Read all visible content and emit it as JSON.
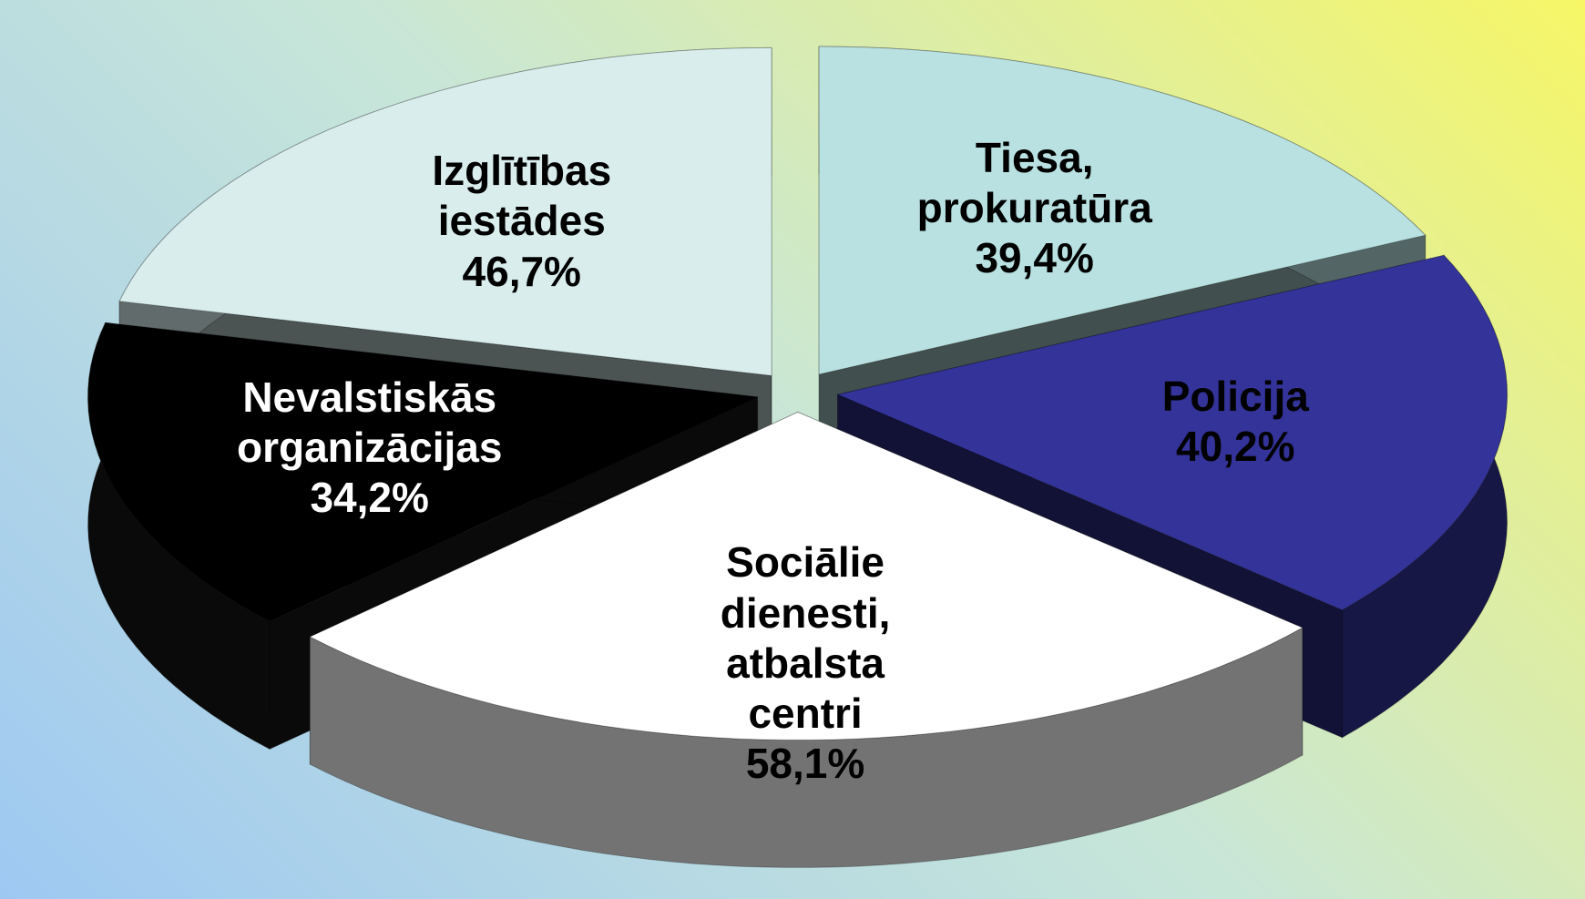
{
  "chart_data": {
    "type": "pie",
    "categories": [
      "Tiesa,\nprokuratūra",
      "Policija",
      "Sociālie\ndienesti,\natbalsta\ncentri",
      "Nevalstiskās\norganizācijas",
      "Izglītības\niestādes"
    ],
    "values": [
      39.4,
      40.2,
      58.1,
      34.2,
      46.7
    ],
    "value_labels": [
      "39,4%",
      "40,2%",
      "58,1%",
      "34,2%",
      "46,7%"
    ],
    "colors": [
      "#b9e1e1",
      "#333399",
      "#ffffff",
      "#000000",
      "#d9eded"
    ]
  }
}
